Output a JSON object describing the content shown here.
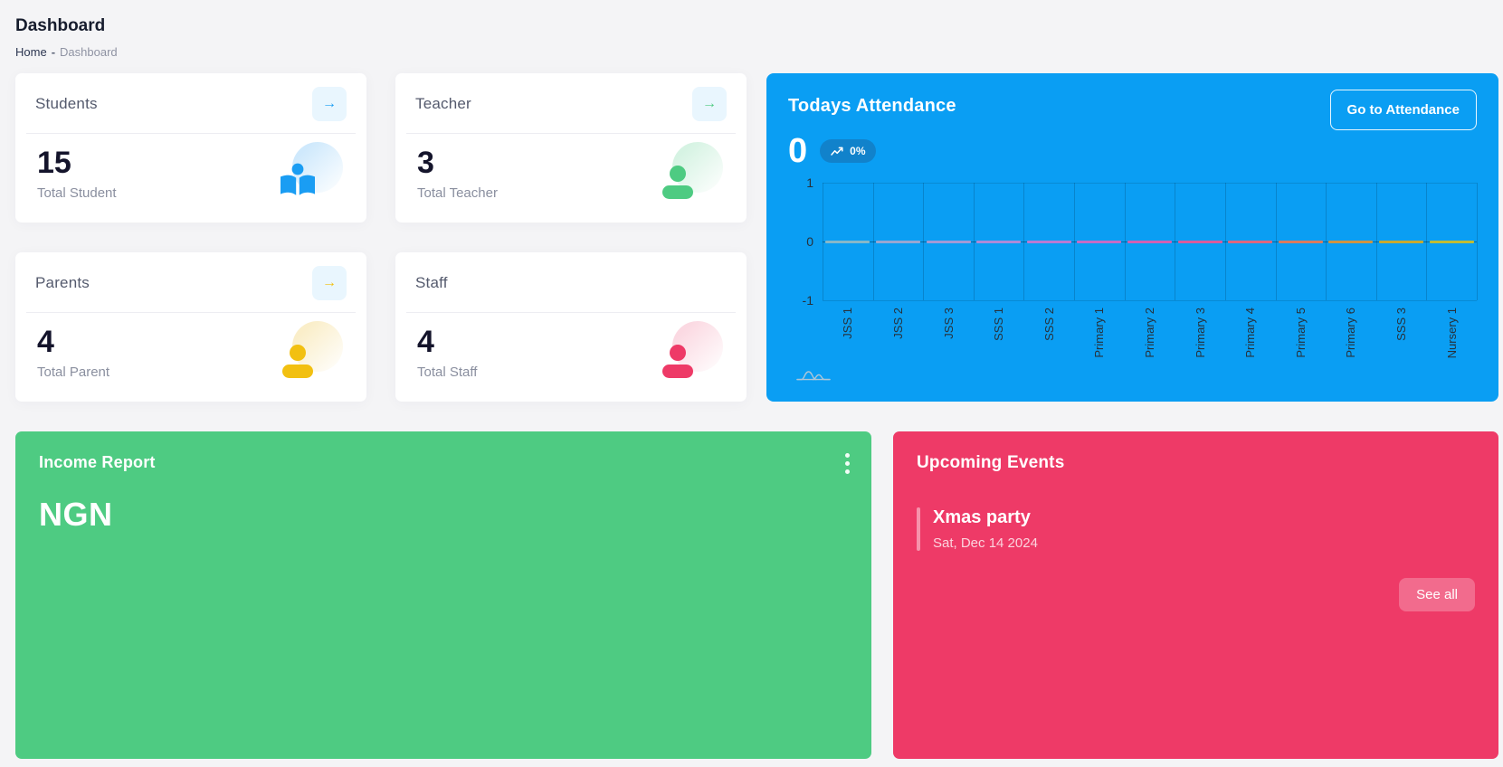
{
  "page": {
    "title": "Dashboard",
    "breadcrumb": {
      "home": "Home",
      "separator": "-",
      "current": "Dashboard"
    }
  },
  "stat_cards": [
    {
      "title": "Students",
      "value": "15",
      "label": "Total Student",
      "accent": "#1a9df3",
      "icon_bg": "#cfe9fc",
      "icon": "reader-icon",
      "arrow": true
    },
    {
      "title": "Teacher",
      "value": "3",
      "label": "Total Teacher",
      "accent": "#4ecb82",
      "icon_bg": "#d6f3e3",
      "icon": "person-icon",
      "arrow": true
    },
    {
      "title": "Parents",
      "value": "4",
      "label": "Total Parent",
      "accent": "#f2c011",
      "icon_bg": "#faeec9",
      "icon": "person-icon",
      "arrow": true
    },
    {
      "title": "Staff",
      "value": "4",
      "label": "Total Staff",
      "accent": "#ee3a67",
      "icon_bg": "#fbd9e2",
      "icon": "person-icon",
      "arrow": false
    }
  ],
  "attendance": {
    "title": "Todays Attendance",
    "button_label": "Go to Attendance",
    "count": "0",
    "badge": "0%",
    "card_color": "#0a9ef3",
    "badge_bg": "#1182cb"
  },
  "chart_data": {
    "type": "bar",
    "title": "Todays Attendance",
    "categories": [
      "JSS 1",
      "JSS 2",
      "JSS 3",
      "SSS 1",
      "SSS 2",
      "Primary 1",
      "Primary 2",
      "Primary 3",
      "Primary 4",
      "Primary 5",
      "Primary 6",
      "SSS 3",
      "Nursery 1"
    ],
    "values": [
      0,
      0,
      0,
      0,
      0,
      0,
      0,
      0,
      0,
      0,
      0,
      0,
      0
    ],
    "series_colors": [
      "#86b7c9",
      "#98a6d1",
      "#a399d6",
      "#ad8ad9",
      "#ba7ad3",
      "#c66cc6",
      "#d260b4",
      "#da5c9d",
      "#dd6680",
      "#d97b5f",
      "#cf9442",
      "#c7a930",
      "#c0bc35"
    ],
    "xlabel": "",
    "ylabel": "",
    "ylim": [
      -1,
      1
    ],
    "yticks": [
      "1",
      "0",
      "-1"
    ],
    "grid": true,
    "legend": false
  },
  "income": {
    "title": "Income Report",
    "currency": "NGN",
    "card_color": "#4ecb82"
  },
  "events": {
    "title": "Upcoming Events",
    "card_color": "#ee3a67",
    "see_all_label": "See all",
    "items": [
      {
        "name": "Xmas party",
        "date": "Sat, Dec 14 2024"
      }
    ]
  }
}
